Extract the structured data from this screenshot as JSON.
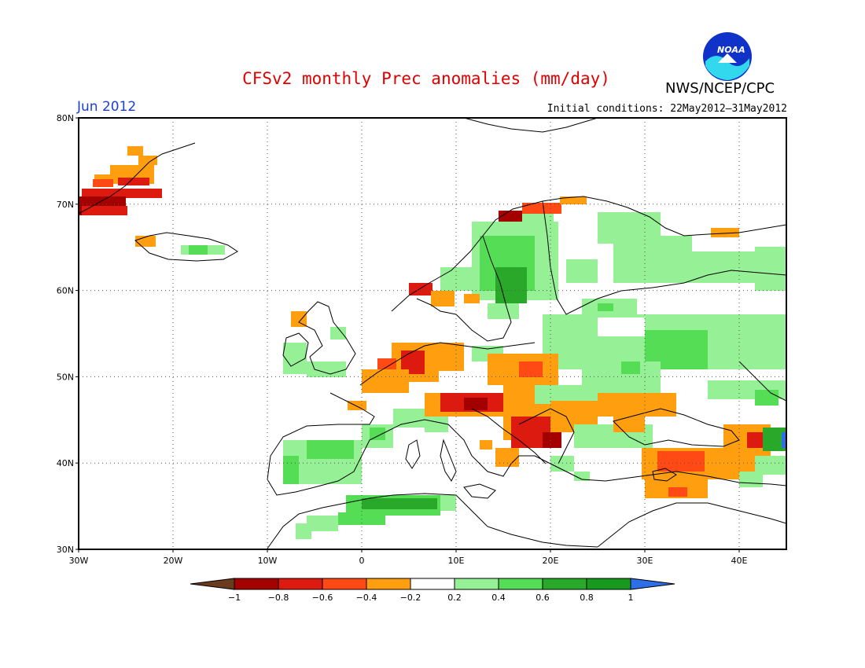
{
  "header": {
    "title": "CFSv2 monthly Prec anomalies (mm/day)",
    "month": "Jun 2012",
    "initial_conditions": "Initial conditions: 22May2012–31May2012",
    "agency": "NWS/NCEP/CPC",
    "logo_text": "NOAA"
  },
  "axes": {
    "lat_labels": [
      "80N",
      "70N",
      "60N",
      "50N",
      "40N",
      "30N"
    ],
    "lon_labels": [
      "30W",
      "20W",
      "10W",
      "0",
      "10E",
      "20E",
      "30E",
      "40E"
    ]
  },
  "colorbar": {
    "tick_labels": [
      "−1",
      "−0.8",
      "−0.6",
      "−0.4",
      "−0.2",
      "0.2",
      "0.4",
      "0.6",
      "0.8",
      "1"
    ],
    "colors": [
      "#6b3b1e",
      "#a50000",
      "#dd1a10",
      "#ff4a15",
      "#ff9f0f",
      "#ffffff",
      "#96f096",
      "#55dd55",
      "#2aa82a",
      "#17991e",
      "#2d6fe8"
    ]
  },
  "colors": {
    "title": "#e00000",
    "month": "#1a3fd6",
    "logo_blue": "#1032c8",
    "logo_cyan": "#31d8ee"
  }
}
